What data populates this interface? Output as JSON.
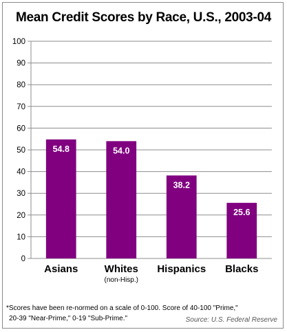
{
  "chart_data": {
    "type": "bar",
    "title": "Mean Credit Scores by Race, U.S., 2003-04",
    "categories": [
      "Asians",
      "Whites",
      "Hispanics",
      "Blacks"
    ],
    "category_sublabels": [
      "",
      "(non-Hisp.)",
      "",
      ""
    ],
    "values": [
      54.8,
      54.0,
      38.2,
      25.6
    ],
    "data_labels": [
      "54.8",
      "54.0",
      "38.2",
      "25.6"
    ],
    "ylim": [
      0,
      100
    ],
    "yticks": [
      0,
      10,
      20,
      30,
      40,
      50,
      60,
      70,
      80,
      90,
      100
    ],
    "grid": true,
    "bar_color": "#800080",
    "xlabel": "",
    "ylabel": ""
  },
  "footnote": {
    "line1": "*Scores have been re-normed on a scale of 0-100. Score of 40-100 \"Prime,\"",
    "line2": "20-39 \"Near-Prime,\" 0-19 \"Sub-Prime.\""
  },
  "source": "Source: U.S. Federal Reserve"
}
